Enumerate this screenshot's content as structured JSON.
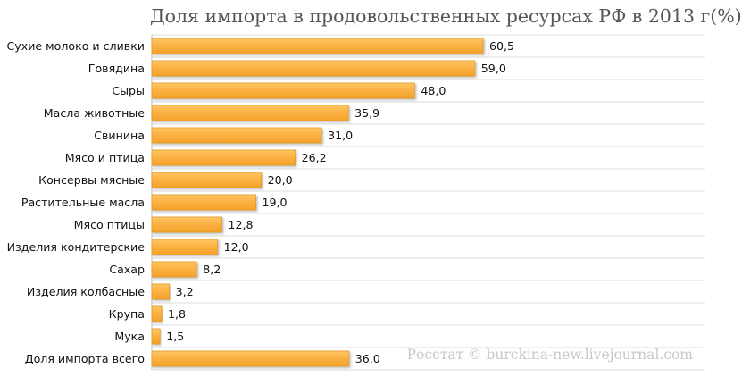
{
  "chart_data": {
    "type": "bar",
    "orientation": "horizontal",
    "title": "Доля импорта в продовольственных ресурсах РФ в 2013 г(%)",
    "source_note": "Росстат © burckina-new.livejournal.com",
    "xlabel": "",
    "ylabel": "",
    "xlim": [
      0,
      100
    ],
    "grid": true,
    "bar_color": "#fbb040",
    "bar_edge_color": "#e89a20",
    "categories": [
      "Сухие молоко и сливки",
      "Говядина",
      "Сыры",
      "Масла животные",
      "Свинина",
      "Мясо и птица",
      "Консервы мясные",
      "Растительные масла",
      "Мясо птицы",
      "Изделия кондитерские",
      "Сахар",
      "Изделия колбасные",
      "Крупа",
      "Мука",
      "Доля импорта всего"
    ],
    "values": [
      60.5,
      59.0,
      48.0,
      35.9,
      31.0,
      26.2,
      20.0,
      19.0,
      12.8,
      12.0,
      8.2,
      3.2,
      1.8,
      1.5,
      36.0
    ],
    "value_labels": [
      "60,5",
      "59,0",
      "48,0",
      "35,9",
      "31,0",
      "26,2",
      "20,0",
      "19,0",
      "12,8",
      "12,0",
      "8,2",
      "3,2",
      "1,8",
      "1,5",
      "36,0"
    ]
  }
}
